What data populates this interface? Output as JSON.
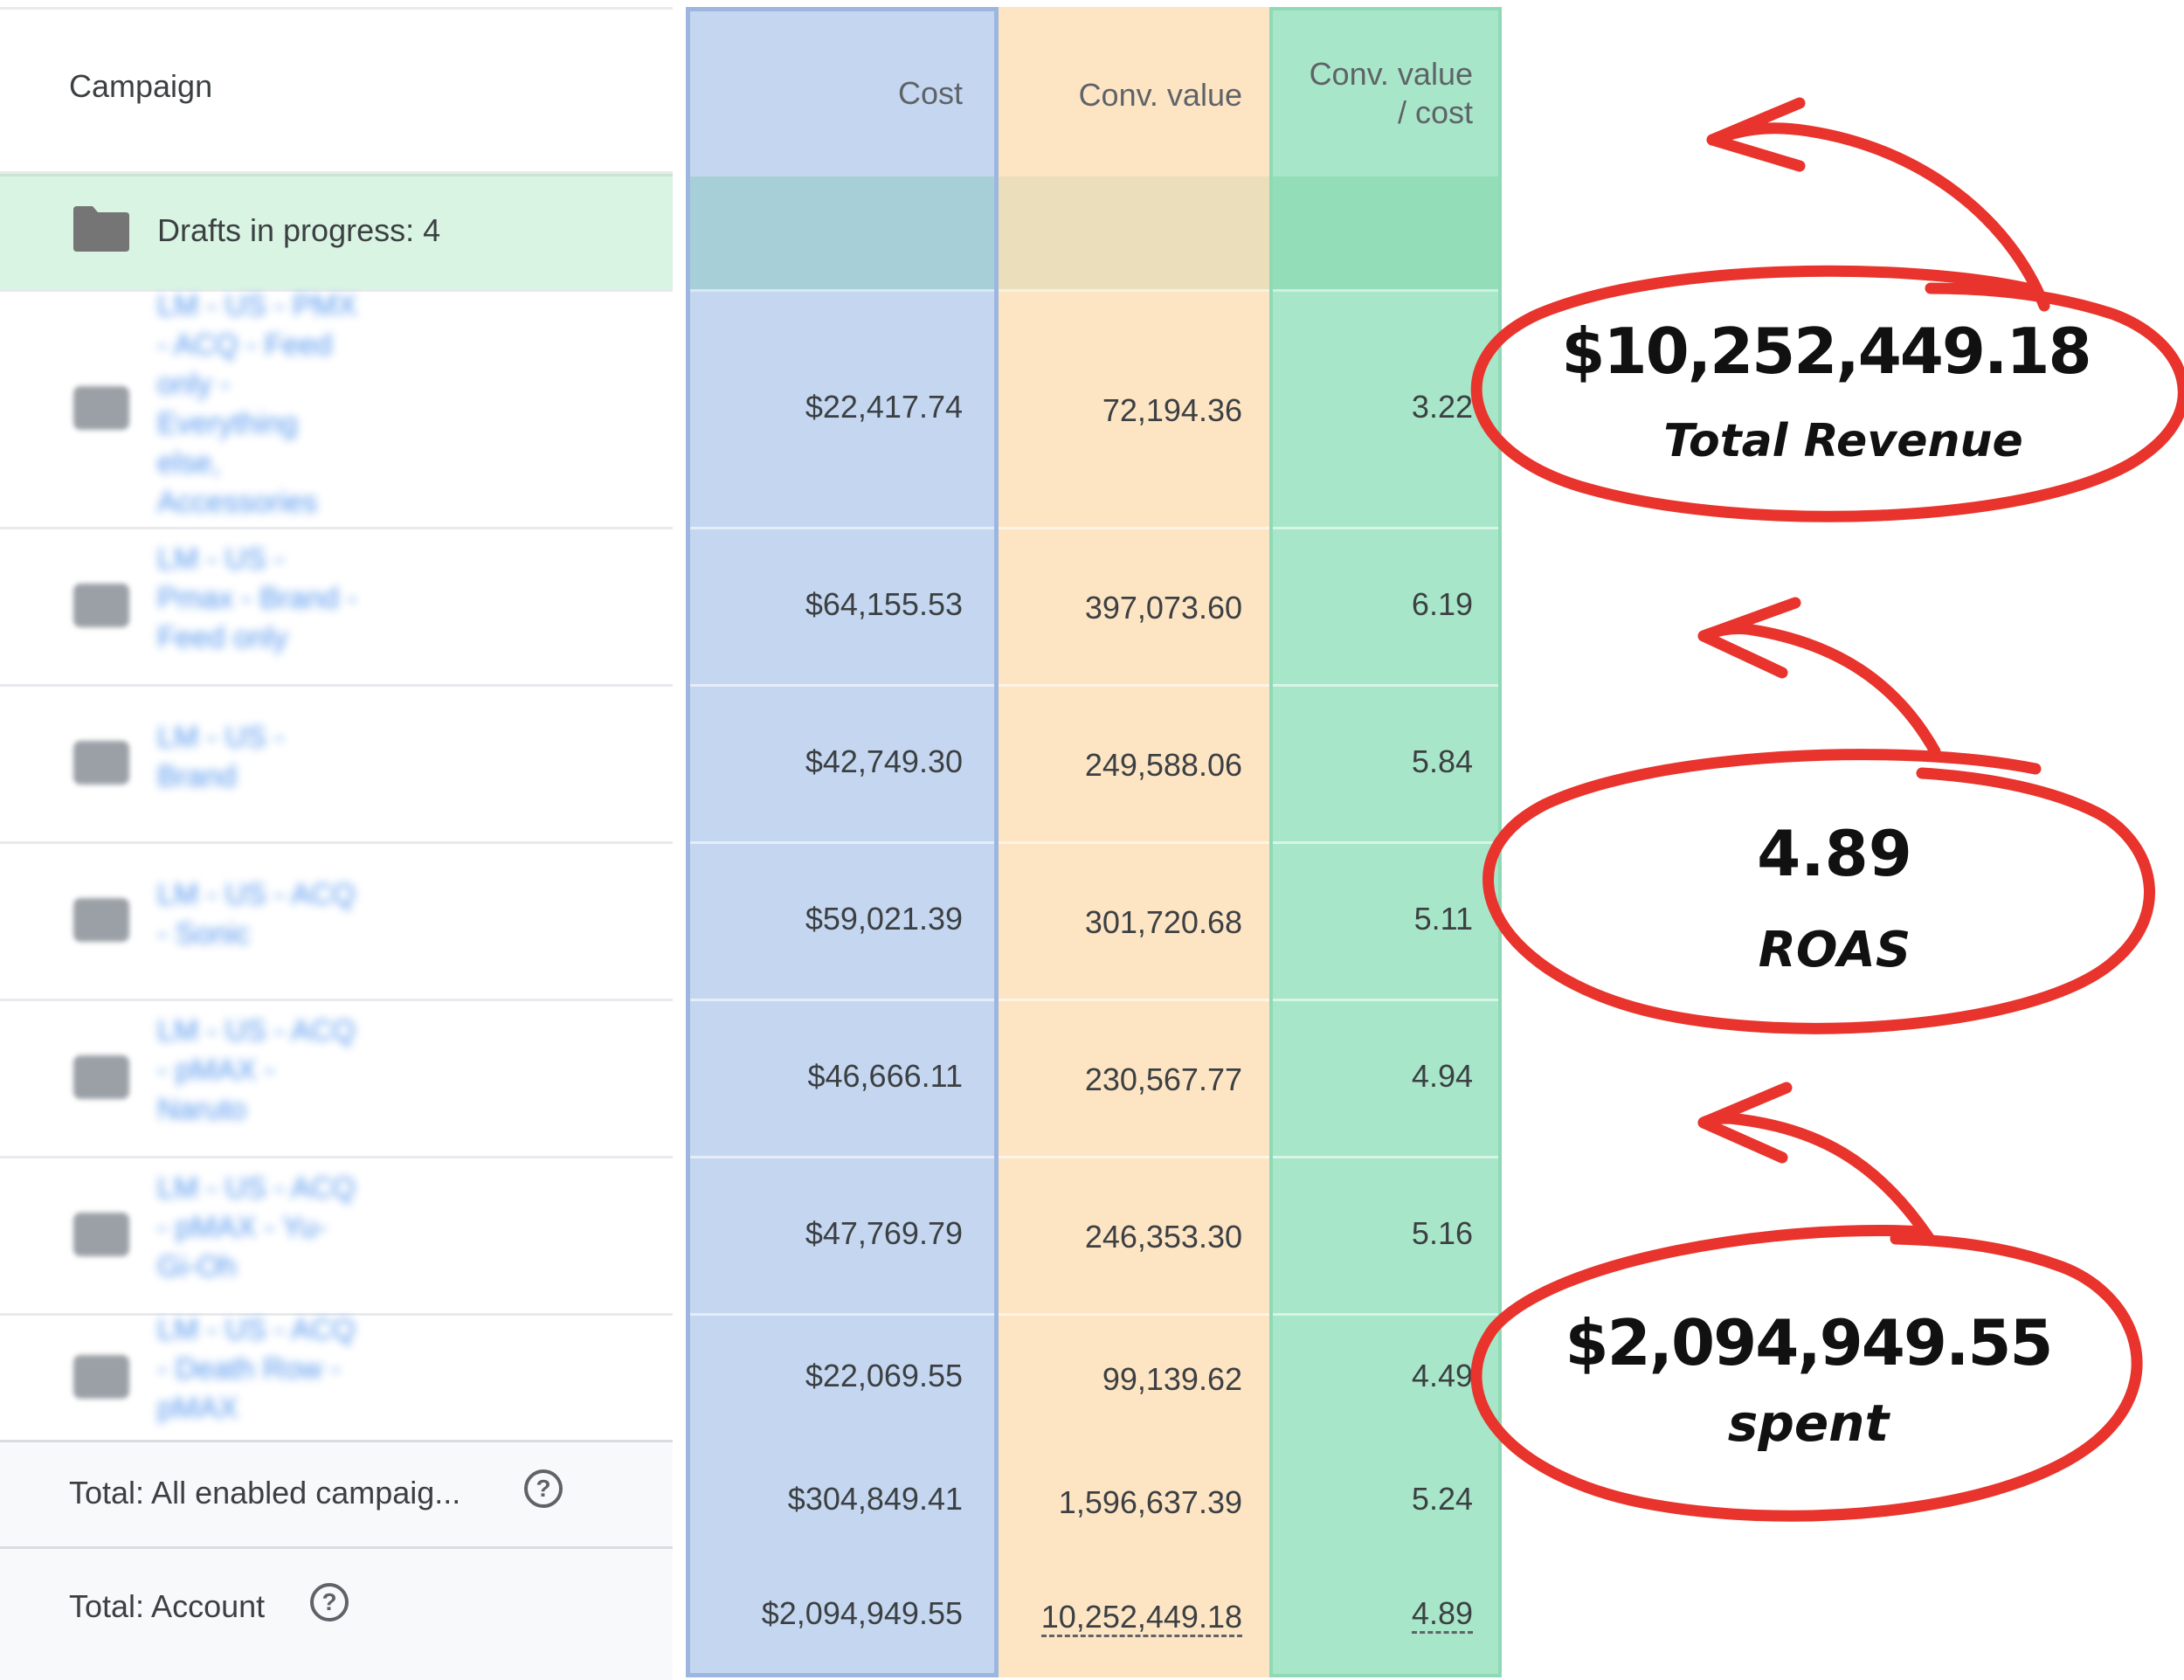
{
  "header": {
    "campaign_label": "Campaign",
    "cost_label": "Cost",
    "conv_value_label": "Conv. value",
    "roas_label_line1": "Conv. value",
    "roas_label_line2": "/ cost"
  },
  "drafts": {
    "label": "Drafts in progress: 4",
    "icon": "folder-icon"
  },
  "rows": [
    {
      "name": "LM - US - PMX - ACQ - Feed only - Everything else, Accessories",
      "icon": "performance-max-icon",
      "cost": "$22,417.74",
      "conv_value": "72,194.36",
      "roas": "3.22"
    },
    {
      "name": "LM - US - Pmax - Brand - Feed only",
      "icon": "performance-max-icon",
      "cost": "$64,155.53",
      "conv_value": "397,073.60",
      "roas": "6.19"
    },
    {
      "name": "LM - US - Brand",
      "icon": "search-campaign-icon",
      "cost": "$42,749.30",
      "conv_value": "249,588.06",
      "roas": "5.84"
    },
    {
      "name": "LM - US - ACQ - Sonic",
      "icon": "performance-max-icon",
      "cost": "$59,021.39",
      "conv_value": "301,720.68",
      "roas": "5.11"
    },
    {
      "name": "LM - US - ACQ - pMAX - Naruto",
      "icon": "performance-max-icon",
      "cost": "$46,666.11",
      "conv_value": "230,567.77",
      "roas": "4.94"
    },
    {
      "name": "LM - US - ACQ - pMAX - Yu-Gi-Oh",
      "icon": "performance-max-icon",
      "cost": "$47,769.79",
      "conv_value": "246,353.30",
      "roas": "5.16"
    },
    {
      "name": "LM - US - ACQ - Death Row - pMAX",
      "icon": "performance-max-icon",
      "cost": "$22,069.55",
      "conv_value": "99,139.62",
      "roas": "4.49"
    }
  ],
  "totals": {
    "enabled": {
      "label": "Total: All enabled campaig...",
      "cost": "$304,849.41",
      "conv_value": "1,596,637.39",
      "roas": "5.24"
    },
    "account": {
      "label": "Total: Account",
      "cost": "$2,094,949.55",
      "conv_value": "10,252,449.18",
      "roas": "4.89"
    }
  },
  "annotations": {
    "revenue": {
      "value": "$10,252,449.18",
      "caption": "Total Revenue"
    },
    "roas": {
      "value": "4.89",
      "caption": "ROAS"
    },
    "spent": {
      "value": "$2,094,949.55",
      "caption": "spent"
    }
  },
  "colors": {
    "cost_column": "#c5d7f0",
    "conv_value_column": "#fde5c4",
    "roas_column": "#a8e6c9",
    "drafts_row": "#d9f4e3",
    "annotation_red": "#e8342c"
  }
}
